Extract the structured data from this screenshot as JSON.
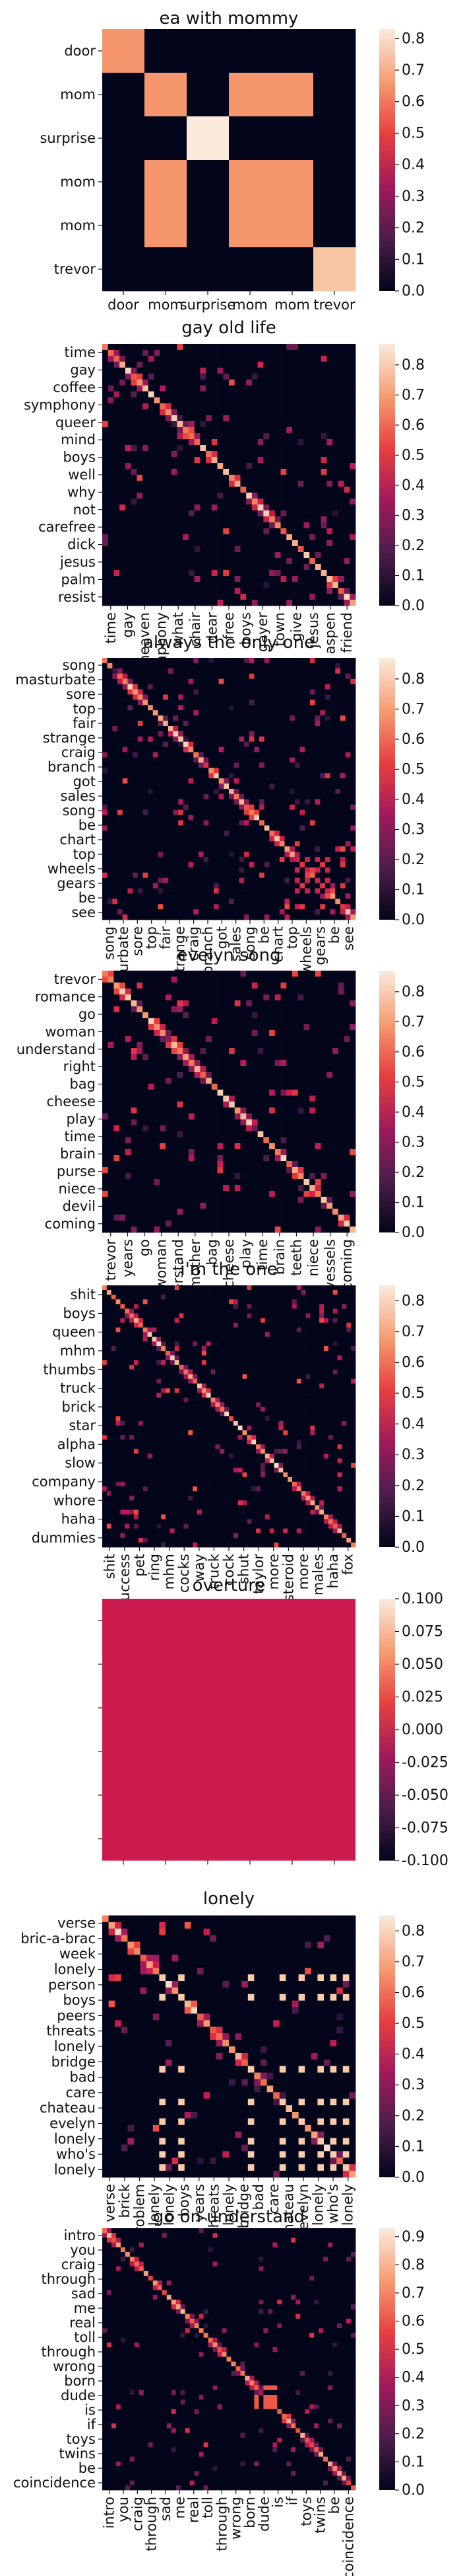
{
  "chart_data": [
    {
      "type": "heatmap",
      "title": "ea with mommy",
      "rows": [
        "door",
        "mom",
        "surprise",
        "mom",
        "mom",
        "trevor"
      ],
      "cols": [
        "door",
        "mom",
        "surprise",
        "mom",
        "mom",
        "trevor"
      ],
      "vmin": 0,
      "vmax": 0.83,
      "colorbar_ticks": [
        "0.0",
        "0.1",
        "0.2",
        "0.3",
        "0.4",
        "0.5",
        "0.6",
        "0.7",
        "0.8"
      ],
      "colorbar_values": [
        0,
        0.1,
        0.2,
        0.3,
        0.4,
        0.5,
        0.6,
        0.7,
        0.8
      ],
      "values": [
        [
          0.65,
          0,
          0,
          0,
          0,
          0
        ],
        [
          0,
          0.65,
          0,
          0.65,
          0.65,
          0
        ],
        [
          0,
          0,
          0.83,
          0,
          0,
          0
        ],
        [
          0,
          0.65,
          0,
          0.65,
          0.65,
          0
        ],
        [
          0,
          0.65,
          0,
          0.65,
          0.65,
          0
        ],
        [
          0,
          0,
          0,
          0,
          0,
          0.75
        ]
      ]
    },
    {
      "type": "heatmap",
      "title": "gay old life",
      "rows": [
        "time",
        "gay",
        "coffee",
        "symphony",
        "queer",
        "mind",
        "boys",
        "well",
        "why",
        "not",
        "carefree",
        "dick",
        "jesus",
        "palm",
        "resist"
      ],
      "cols": [
        "time",
        "gay",
        "heaven",
        "symphony",
        "what",
        "chair",
        "dear",
        "free",
        "boys",
        "gayer",
        "town",
        "give",
        "jesus",
        "aspen",
        "friend"
      ],
      "n": 44,
      "vmin": 0,
      "vmax": 0.87,
      "colorbar_ticks": [
        "0.0",
        "0.1",
        "0.2",
        "0.3",
        "0.4",
        "0.5",
        "0.6",
        "0.7",
        "0.8"
      ],
      "colorbar_values": [
        0,
        0.1,
        0.2,
        0.3,
        0.4,
        0.5,
        0.6,
        0.7,
        0.8
      ]
    },
    {
      "type": "heatmap",
      "title": "always the only one",
      "rows": [
        "song",
        "masturbate",
        "sore",
        "top",
        "fair",
        "strange",
        "craig",
        "branch",
        "got",
        "sales",
        "song",
        "be",
        "chart",
        "top",
        "wheels",
        "gears",
        "be",
        "see"
      ],
      "cols": [
        "song",
        "masturbate",
        "sore",
        "top",
        "fair",
        "strange",
        "craig",
        "branch",
        "got",
        "sales",
        "song",
        "be",
        "chart",
        "top",
        "wheels",
        "gears",
        "be",
        "see"
      ],
      "n": 50,
      "vmin": 0,
      "vmax": 0.87,
      "colorbar_ticks": [
        "0.0",
        "0.1",
        "0.2",
        "0.3",
        "0.4",
        "0.5",
        "0.6",
        "0.7",
        "0.8"
      ],
      "colorbar_values": [
        0,
        0.1,
        0.2,
        0.3,
        0.4,
        0.5,
        0.6,
        0.7,
        0.8
      ]
    },
    {
      "type": "heatmap",
      "title": "evelyn song",
      "rows": [
        "trevor",
        "romance",
        "go",
        "woman",
        "understand",
        "right",
        "bag",
        "cheese",
        "play",
        "time",
        "brain",
        "purse",
        "niece",
        "devil",
        "coming"
      ],
      "cols": [
        "trevor",
        "years",
        "go",
        "woman",
        "understand",
        "mother",
        "bag",
        "cheese",
        "play",
        "time",
        "brain",
        "teeth",
        "niece",
        "vessels",
        "coming"
      ],
      "n": 44,
      "vmin": 0,
      "vmax": 0.87,
      "colorbar_ticks": [
        "0.0",
        "0.1",
        "0.2",
        "0.3",
        "0.4",
        "0.5",
        "0.6",
        "0.7",
        "0.8"
      ],
      "colorbar_values": [
        0,
        0.1,
        0.2,
        0.3,
        0.4,
        0.5,
        0.6,
        0.7,
        0.8
      ]
    },
    {
      "type": "heatmap",
      "title": "i'm the one",
      "rows": [
        "shit",
        "boys",
        "queen",
        "mhm",
        "thumbs",
        "truck",
        "brick",
        "star",
        "alpha",
        "slow",
        "company",
        "whore",
        "haha",
        "dummies"
      ],
      "cols": [
        "shit",
        "success",
        "pet",
        "ring",
        "mhm",
        "cocks",
        "way",
        "truck",
        "cock",
        "shut",
        "taylor",
        "more",
        "steroid",
        "more",
        "males",
        "haha",
        "fox"
      ],
      "n": 56,
      "vmin": 0,
      "vmax": 0.85,
      "colorbar_ticks": [
        "0.0",
        "0.1",
        "0.2",
        "0.3",
        "0.4",
        "0.5",
        "0.6",
        "0.7",
        "0.8"
      ],
      "colorbar_values": [
        0,
        0.1,
        0.2,
        0.3,
        0.4,
        0.5,
        0.6,
        0.7,
        0.8
      ]
    },
    {
      "type": "heatmap",
      "title": "overture",
      "uniform_value": 0,
      "vmin": -0.1,
      "vmax": 0.1,
      "colorbar_ticks": [
        "0.100",
        "0.075",
        "0.050",
        "0.025",
        "0.000",
        "-0.025",
        "-0.050",
        "-0.075",
        "-0.100"
      ],
      "colorbar_values": [
        0.1,
        0.075,
        0.05,
        0.025,
        0,
        -0.025,
        -0.05,
        -0.075,
        -0.1
      ]
    },
    {
      "type": "heatmap",
      "title": "lonely",
      "rows": [
        "verse",
        "bric-a-brac",
        "week",
        "lonely",
        "person",
        "boys",
        "peers",
        "threats",
        "lonely",
        "bridge",
        "bad",
        "care",
        "chateau",
        "evelyn",
        "lonely",
        "who's",
        "lonely"
      ],
      "cols": [
        "verse",
        "brick",
        "problem",
        "lonely",
        "lonely",
        "boys",
        "years",
        "threats",
        "lonely",
        "bridge",
        "bad",
        "care",
        "chateau",
        "evelyn",
        "lonely",
        "who's",
        "lonely"
      ],
      "n": 40,
      "vmin": 0,
      "vmax": 0.85,
      "colorbar_ticks": [
        "0.0",
        "0.1",
        "0.2",
        "0.3",
        "0.4",
        "0.5",
        "0.6",
        "0.7",
        "0.8"
      ],
      "colorbar_values": [
        0,
        0.1,
        0.2,
        0.3,
        0.4,
        0.5,
        0.6,
        0.7,
        0.8
      ]
    },
    {
      "type": "heatmap",
      "title": "go on understand",
      "rows": [
        "intro",
        "you",
        "craig",
        "through",
        "sad",
        "me",
        "real",
        "toll",
        "through",
        "wrong",
        "born",
        "dude",
        "is",
        "if",
        "toys",
        "twins",
        "be",
        "coincidence"
      ],
      "cols": [
        "intro",
        "you",
        "craig",
        "through",
        "sad",
        "me",
        "real",
        "toll",
        "through",
        "wrong",
        "born",
        "dude",
        "is",
        "if",
        "toys",
        "twins",
        "be",
        "coincidence"
      ],
      "n": 55,
      "vmin": 0,
      "vmax": 0.93,
      "colorbar_ticks": [
        "0.0",
        "0.1",
        "0.2",
        "0.3",
        "0.4",
        "0.5",
        "0.6",
        "0.7",
        "0.8",
        "0.9"
      ],
      "colorbar_values": [
        0,
        0.1,
        0.2,
        0.3,
        0.4,
        0.5,
        0.6,
        0.7,
        0.8,
        0.9
      ]
    }
  ]
}
